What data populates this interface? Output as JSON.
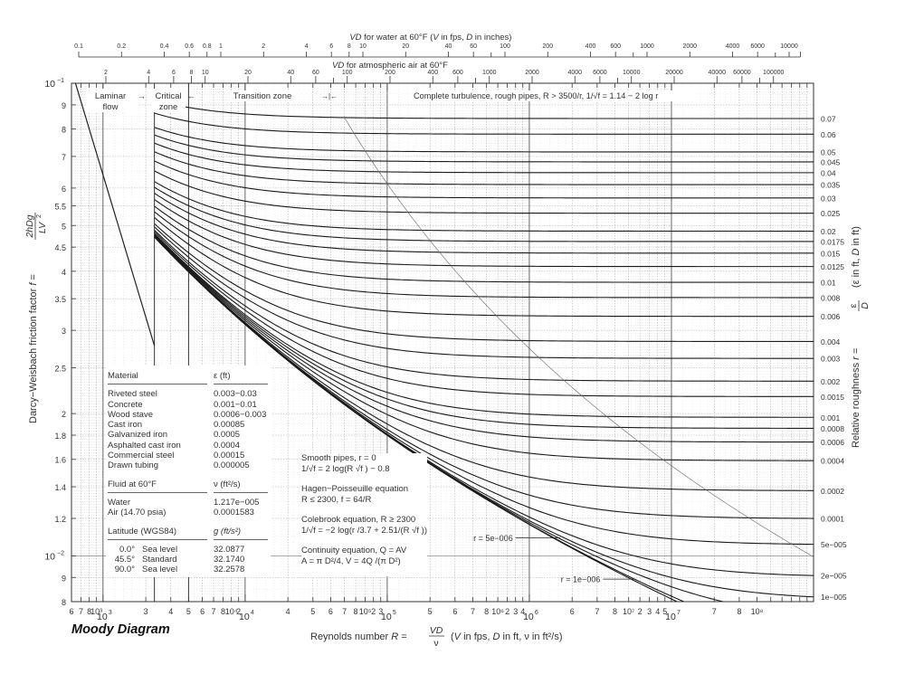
{
  "title": "Moody Diagram",
  "top_axes": {
    "water": {
      "label_italic": "VD",
      "label_rest": " for water at 60°F (",
      "label_v": "V",
      "label_mid": " in fps, ",
      "label_d": "D",
      "label_end": " in inches)",
      "ticks": [
        "0.1",
        "0.2",
        "0.4",
        "0.6",
        "0.8",
        "1",
        "2",
        "4",
        "6",
        "8",
        "10",
        "20",
        "40",
        "60",
        "100",
        "200",
        "400",
        "600",
        "1000",
        "2000",
        "4000",
        "6000",
        "10000"
      ]
    },
    "air": {
      "label_italic": "VD",
      "label_rest": " for atmospheric air at 60°F",
      "ticks": [
        "2",
        "4",
        "6",
        "8",
        "10",
        "20",
        "40",
        "60",
        "100",
        "200",
        "400",
        "600",
        "1000",
        "2000",
        "4000",
        "6000",
        "10000",
        "20000",
        "40000",
        "60000",
        "100000"
      ]
    }
  },
  "zones": {
    "laminar_line1": "Laminar",
    "laminar_line2": "flow",
    "critical_line1": "Critical",
    "critical_line2": "zone",
    "transition": "Transition zone",
    "complete": "Complete turbulence, rough pipes, R > 3500/r,  1/√f = 1.14 − 2 log r"
  },
  "materials_table": {
    "header_material": "Material",
    "header_eps": "ε (ft)",
    "rows": [
      [
        "Riveted steel",
        "0.003−0.03"
      ],
      [
        "Concrete",
        "0.001−0.01"
      ],
      [
        "Wood stave",
        "0.0006−0.003"
      ],
      [
        "Cast iron",
        "0.00085"
      ],
      [
        "Galvanized iron",
        "0.0005"
      ],
      [
        "Asphalted cast iron",
        "0.0004"
      ],
      [
        "Commercial steel",
        "0.00015"
      ],
      [
        "Drawn tubing",
        "0.000005"
      ]
    ],
    "header_fluid": "Fluid at 60°F",
    "header_nu": "ν (ft²/s)",
    "fluids": [
      [
        "Water",
        "1.217e−005"
      ],
      [
        "Air (14.70 psia)",
        "0.0001583"
      ]
    ],
    "header_lat": "Latitude (WGS84)",
    "header_g": "g (ft/s²)",
    "gravity": [
      [
        "0.0°",
        "Sea level",
        "32.0877"
      ],
      [
        "45.5°",
        "Standard",
        "32.1740"
      ],
      [
        "90.0°",
        "Sea level",
        "32.2578"
      ]
    ]
  },
  "equations": [
    {
      "line1": "Smooth pipes, r = 0",
      "line2": "1/√f = 2 log(R √f ) − 0.8"
    },
    {
      "line1": "Hagen−Poisseuille equation",
      "line2": "R ≤ 2300,  f = 64/R"
    },
    {
      "line1": "Colebrook equation, R ≥ 2300",
      "line2": "1/√f = −2 log(r /3.7 + 2.51/(R √f ))"
    },
    {
      "line1": "Continuity equation, Q = AV",
      "line2": "A = π D²/4,  V = 4Q /(π D²)"
    }
  ],
  "curve_labels": {
    "r5e6": "r = 5e−006",
    "r1e6": "r = 1e−006"
  },
  "chart_data": {
    "type": "line",
    "title": "Moody Diagram",
    "xlabel": "Reynolds number R = VD/ν (V in fps, D in ft, ν in ft²/s)",
    "ylabel": "Darcy−Weisbach friction factor f = 2hDg / (LV²)",
    "y2label": "Relative roughness r = ε/D (ε in ft, D in ft)",
    "xscale": "log",
    "yscale": "log",
    "xlim": [
      600,
      100000000
    ],
    "ylim": [
      0.008,
      0.1
    ],
    "grid": true,
    "x_tick_labels": [
      "6",
      "7",
      "8",
      "10³",
      "2",
      "3",
      "4",
      "5",
      "6",
      "7",
      "8",
      "10⁴",
      "2",
      "3",
      "4",
      "5",
      "6",
      "7",
      "8",
      "10⁵",
      "2",
      "3",
      "4",
      "5",
      "6",
      "7",
      "8",
      "10⁶",
      "2",
      "3",
      "4",
      "5",
      "6",
      "7",
      "8",
      "10⁷",
      "2",
      "3",
      "4",
      "5",
      "6",
      "7",
      "8",
      "10⁸"
    ],
    "y_tick_labels": [
      "10⁻¹",
      "9",
      "8",
      "7",
      "6",
      "5.5",
      "5",
      "4.5",
      "4",
      "3.5",
      "3",
      "2.5",
      "2",
      "1.8",
      "1.6",
      "1.4",
      "1.2",
      "10⁻²",
      "9",
      "8"
    ],
    "y_tick_values": [
      0.1,
      0.09,
      0.08,
      0.07,
      0.06,
      0.055,
      0.05,
      0.045,
      0.04,
      0.035,
      0.03,
      0.025,
      0.02,
      0.018,
      0.016,
      0.014,
      0.012,
      0.01,
      0.009,
      0.008
    ],
    "relative_roughness": [
      0.07,
      0.06,
      0.05,
      0.045,
      0.04,
      0.035,
      0.03,
      0.025,
      0.02,
      0.0175,
      0.015,
      0.0125,
      0.01,
      0.008,
      0.006,
      0.004,
      0.003,
      0.002,
      0.0015,
      0.001,
      0.0008,
      0.0006,
      0.0004,
      0.0002,
      0.0001,
      5e-05,
      2e-05,
      1e-05,
      5e-06,
      1e-06
    ],
    "right_labels": [
      "0.07",
      "0.06",
      "0.05",
      "0.045",
      "0.04",
      "0.035",
      "0.03",
      "0.025",
      "0.02",
      "0.0175",
      "0.015",
      "0.0125",
      "0.01",
      "0.008",
      "0.006",
      "0.004",
      "0.003",
      "0.002",
      "0.0015",
      "0.001",
      "0.0008",
      "0.0006",
      "0.0004",
      "0.0002",
      "0.0001",
      "5e−005",
      "2e−005",
      "1e−005"
    ],
    "series": [
      {
        "name": "Laminar (f = 64/R)",
        "x": [
          600,
          2300
        ],
        "values": [
          0.1067,
          0.0278
        ]
      },
      {
        "name": "Colebrook curves",
        "note": "one curve per relative_roughness, R from 2300 to 1e8"
      },
      {
        "name": "Complete turbulence boundary (R = 3500/r)",
        "style": "thin"
      }
    ],
    "zone_boundaries_R": [
      2300,
      4000
    ]
  }
}
